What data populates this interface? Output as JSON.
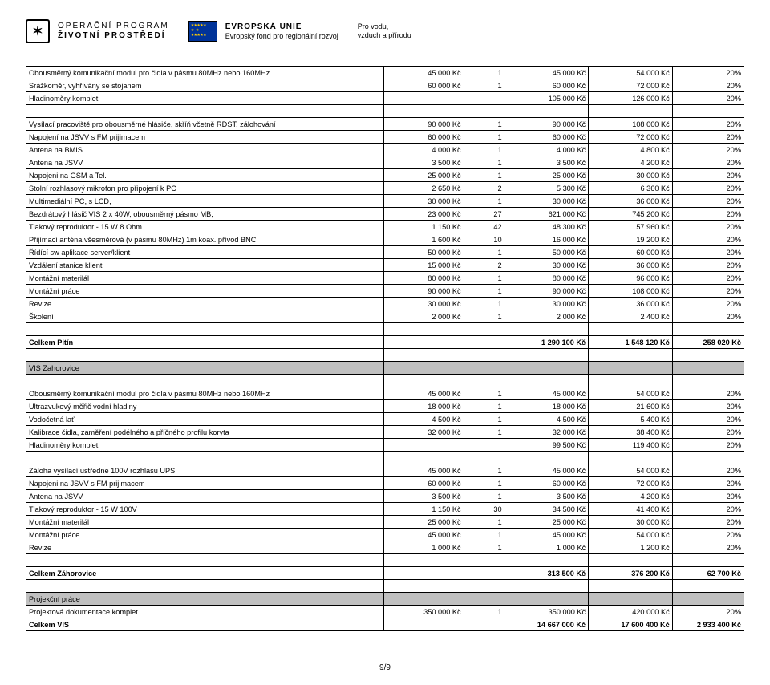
{
  "header": {
    "op_line1": "OPERAČNÍ PROGRAM",
    "op_line2": "ŽIVOTNÍ PROSTŘEDÍ",
    "eu_line1": "EVROPSKÁ UNIE",
    "eu_line2": "Evropský fond pro regionální rozvoj",
    "slogan_line1": "Pro vodu,",
    "slogan_line2": "vzduch a přírodu"
  },
  "rows": [
    {
      "t": "data",
      "c": [
        "Obousměrný komunikační modul pro čidla v  pásmu 80MHz nebo 160MHz",
        "45 000 Kč",
        "1",
        "45 000 Kč",
        "54 000 Kč",
        "20%"
      ]
    },
    {
      "t": "data",
      "c": [
        "Srážkoměr, vyhřívány se stojanem",
        "60 000 Kč",
        "1",
        "60 000 Kč",
        "72 000 Kč",
        "20%"
      ]
    },
    {
      "t": "data",
      "c": [
        "Hladinoměry komplet",
        "",
        "",
        "105 000 Kč",
        "126 000 Kč",
        "20%"
      ]
    },
    {
      "t": "empty"
    },
    {
      "t": "data",
      "c": [
        "Vysílací pracoviště pro obousměrné hlásiče, skříň včetně  RDST, zálohování",
        "90 000 Kč",
        "1",
        "90 000 Kč",
        "108 000 Kč",
        "20%"
      ]
    },
    {
      "t": "data",
      "c": [
        "Napojení na JSVV s FM prijimacem",
        "60 000 Kč",
        "1",
        "60 000 Kč",
        "72 000 Kč",
        "20%"
      ]
    },
    {
      "t": "data",
      "c": [
        "Antena na BMIS",
        "4 000 Kč",
        "1",
        "4 000 Kč",
        "4 800 Kč",
        "20%"
      ]
    },
    {
      "t": "data",
      "c": [
        "Antena na JSVV",
        "3 500 Kč",
        "1",
        "3 500 Kč",
        "4 200 Kč",
        "20%"
      ]
    },
    {
      "t": "data",
      "c": [
        "Napojeni na GSM a Tel.",
        "25 000 Kč",
        "1",
        "25 000 Kč",
        "30 000 Kč",
        "20%"
      ]
    },
    {
      "t": "data",
      "c": [
        "Stolní rozhlasový mikrofon pro připojení k PC",
        "2 650 Kč",
        "2",
        "5 300 Kč",
        "6 360 Kč",
        "20%"
      ]
    },
    {
      "t": "data",
      "c": [
        "Multimediální PC, s LCD,",
        "30 000 Kč",
        "1",
        "30 000 Kč",
        "36 000 Kč",
        "20%"
      ]
    },
    {
      "t": "data",
      "c": [
        "Bezdrátový hlásič VIS 2 x 40W, obousměrný pásmo MB,",
        "23 000 Kč",
        "27",
        "621 000 Kč",
        "745 200 Kč",
        "20%"
      ]
    },
    {
      "t": "data",
      "c": [
        "Tlakový reproduktor - 15 W 8 Ohm",
        "1 150 Kč",
        "42",
        "48 300 Kč",
        "57 960 Kč",
        "20%"
      ]
    },
    {
      "t": "data",
      "c": [
        "Přijímací anténa všesměrová (v pásmu 80MHz) 1m koax. přívod BNC",
        "1 600 Kč",
        "10",
        "16 000 Kč",
        "19 200 Kč",
        "20%"
      ]
    },
    {
      "t": "data",
      "c": [
        "Řídící sw aplikace server/klient",
        "50 000 Kč",
        "1",
        "50 000 Kč",
        "60 000 Kč",
        "20%"
      ]
    },
    {
      "t": "data",
      "c": [
        "Vzdálení stanice klient",
        "15 000 Kč",
        "2",
        "30 000 Kč",
        "36 000 Kč",
        "20%"
      ]
    },
    {
      "t": "data",
      "c": [
        "Montážní materilál",
        "80 000 Kč",
        "1",
        "80 000 Kč",
        "96 000 Kč",
        "20%"
      ]
    },
    {
      "t": "data",
      "c": [
        "Montážní práce",
        "90 000 Kč",
        "1",
        "90 000 Kč",
        "108 000 Kč",
        "20%"
      ]
    },
    {
      "t": "data",
      "c": [
        "Revize",
        "30 000 Kč",
        "1",
        "30 000 Kč",
        "36 000 Kč",
        "20%"
      ]
    },
    {
      "t": "data",
      "c": [
        "Školení",
        "2 000 Kč",
        "1",
        "2 000 Kč",
        "2 400 Kč",
        "20%"
      ]
    },
    {
      "t": "empty"
    },
    {
      "t": "bold",
      "c": [
        "Celkem Pitín",
        "",
        "",
        "1 290 100 Kč",
        "1 548 120 Kč",
        "258 020 Kč"
      ]
    },
    {
      "t": "empty"
    },
    {
      "t": "section",
      "c": [
        "VIS Zahorovice",
        "",
        "",
        "",
        "",
        ""
      ]
    },
    {
      "t": "empty"
    },
    {
      "t": "data",
      "c": [
        "Obousměrný komunikační modul pro čidla v  pásmu 80MHz nebo 160MHz",
        "45 000 Kč",
        "1",
        "45 000 Kč",
        "54 000 Kč",
        "20%"
      ]
    },
    {
      "t": "data",
      "c": [
        "Ultrazvukový měřič vodní hladiny",
        "18 000 Kč",
        "1",
        "18 000 Kč",
        "21 600 Kč",
        "20%"
      ]
    },
    {
      "t": "data",
      "c": [
        "Vodočetná lať",
        "4 500 Kč",
        "1",
        "4 500 Kč",
        "5 400 Kč",
        "20%"
      ]
    },
    {
      "t": "data",
      "c": [
        "Kalibrace čidla, zaměření podélného a příčného profilu koryta",
        "32 000 Kč",
        "1",
        "32 000 Kč",
        "38 400 Kč",
        "20%"
      ]
    },
    {
      "t": "data",
      "c": [
        "Hladinoměry komplet",
        "",
        "",
        "99 500 Kč",
        "119 400 Kč",
        "20%"
      ]
    },
    {
      "t": "empty"
    },
    {
      "t": "data",
      "c": [
        "Záloha vysílací ustředne 100V rozhlasu UPS",
        "45 000 Kč",
        "1",
        "45 000 Kč",
        "54 000 Kč",
        "20%"
      ]
    },
    {
      "t": "data",
      "c": [
        "Napojeni na JSVV s FM prijimacem",
        "60 000 Kč",
        "1",
        "60 000 Kč",
        "72 000 Kč",
        "20%"
      ]
    },
    {
      "t": "data",
      "c": [
        "Antena na JSVV",
        "3 500 Kč",
        "1",
        "3 500 Kč",
        "4 200 Kč",
        "20%"
      ]
    },
    {
      "t": "data",
      "c": [
        "Tlakový reproduktor - 15 W 100V",
        "1 150 Kč",
        "30",
        "34 500 Kč",
        "41 400 Kč",
        "20%"
      ]
    },
    {
      "t": "data",
      "c": [
        "Montážní materilál",
        "25 000 Kč",
        "1",
        "25 000 Kč",
        "30 000 Kč",
        "20%"
      ]
    },
    {
      "t": "data",
      "c": [
        "Montážní práce",
        "45 000 Kč",
        "1",
        "45 000 Kč",
        "54 000 Kč",
        "20%"
      ]
    },
    {
      "t": "data",
      "c": [
        "Revize",
        "1 000 Kč",
        "1",
        "1 000 Kč",
        "1 200 Kč",
        "20%"
      ]
    },
    {
      "t": "empty"
    },
    {
      "t": "bold",
      "c": [
        "Celkem Záhorovice",
        "",
        "",
        "313 500 Kč",
        "376 200 Kč",
        "62 700 Kč"
      ]
    },
    {
      "t": "empty"
    },
    {
      "t": "section",
      "c": [
        "Projekční práce",
        "",
        "",
        "",
        "",
        ""
      ]
    },
    {
      "t": "data",
      "c": [
        "Projektová dokumentace komplet",
        "350 000 Kč",
        "1",
        "350 000 Kč",
        "420 000 Kč",
        "20%"
      ]
    },
    {
      "t": "bold",
      "c": [
        "Celkem VIS",
        "",
        "",
        "14 667 000 Kč",
        "17 600 400 Kč",
        "2 933 400 Kč"
      ]
    }
  ],
  "footer": "9/9"
}
